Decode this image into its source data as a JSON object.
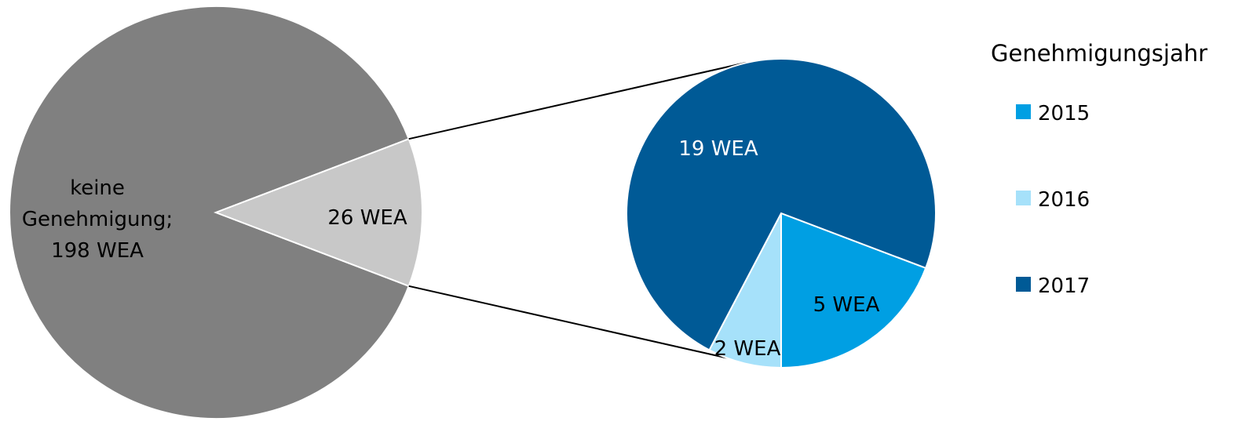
{
  "chart_data": {
    "type": "pie",
    "subtype": "pie-of-pie",
    "title": "",
    "main_pie": {
      "slices": [
        {
          "label_lines": [
            "keine",
            "Genehmigung;",
            "198 WEA"
          ],
          "value": 198,
          "color": "#808080",
          "label_color": "#000000"
        },
        {
          "label_lines": [
            "26 WEA"
          ],
          "value": 26,
          "color": "#c8c8c8",
          "label_color": "#000000",
          "exploded": true
        }
      ]
    },
    "secondary_pie": {
      "slices": [
        {
          "name": "2015",
          "label": "5 WEA",
          "value": 5,
          "color": "#009fe3",
          "label_color": "#000000"
        },
        {
          "name": "2016",
          "label": "2 WEA",
          "value": 2,
          "color": "#a6e1fa",
          "label_color": "#000000"
        },
        {
          "name": "2017",
          "label": "19 WEA",
          "value": 19,
          "color": "#005a96",
          "label_color": "#ffffff"
        }
      ]
    },
    "legend": {
      "title": "Genehmigungsjahr",
      "position": "right",
      "items": [
        {
          "label": "2015",
          "color": "#009fe3"
        },
        {
          "label": "2016",
          "color": "#a6e1fa"
        },
        {
          "label": "2017",
          "color": "#005a96"
        }
      ]
    }
  }
}
